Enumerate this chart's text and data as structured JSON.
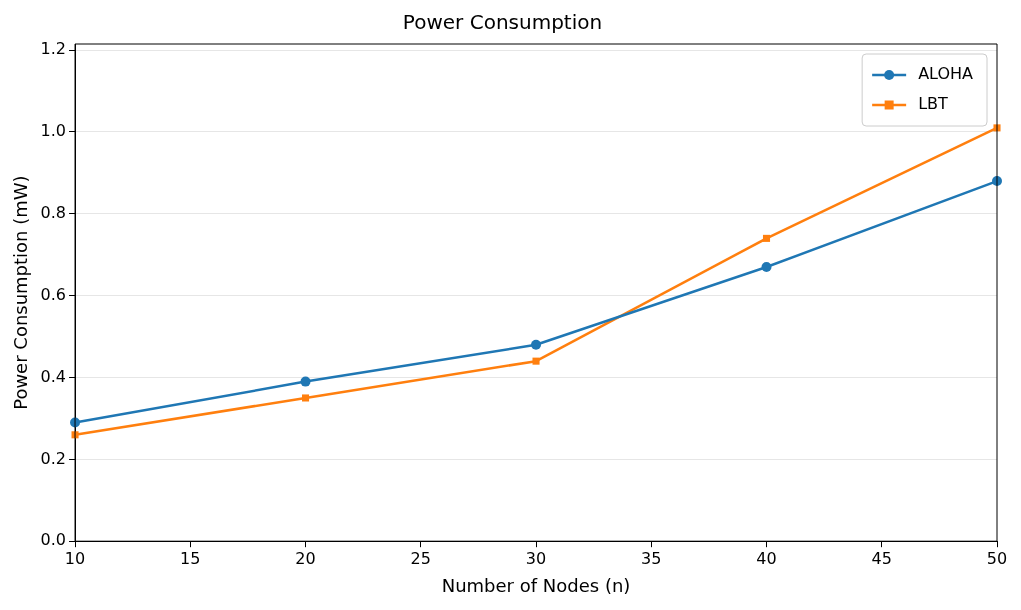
{
  "chart_data": {
    "type": "line",
    "title": "Power Consumption",
    "xlabel": "Number of Nodes (n)",
    "ylabel": "Power Consumption (mW)",
    "x": [
      10,
      20,
      30,
      40,
      50
    ],
    "series": [
      {
        "name": "ALOHA",
        "color": "#1f77b4",
        "marker": "circle",
        "values": [
          0.29,
          0.39,
          0.48,
          0.67,
          0.88
        ]
      },
      {
        "name": "LBT",
        "color": "#ff7f0e",
        "marker": "square",
        "values": [
          0.26,
          0.35,
          0.44,
          0.74,
          1.01
        ]
      }
    ],
    "xlim": [
      10,
      50
    ],
    "xticks": [
      10,
      15,
      20,
      25,
      30,
      35,
      40,
      45,
      50
    ],
    "ylim": [
      0,
      1.215
    ],
    "yticks": [
      {
        "value": 0,
        "label": "0.0"
      },
      {
        "value": 0.2,
        "label": "0.2"
      },
      {
        "value": 0.4,
        "label": "0.4"
      },
      {
        "value": 0.6,
        "label": "0.6"
      },
      {
        "value": 0.8,
        "label": "0.8"
      },
      {
        "value": 1,
        "label": "1.0"
      },
      {
        "value": 1.2,
        "label": "1.2"
      }
    ],
    "grid": "y",
    "legend": "top right",
    "line_style": "solid"
  }
}
